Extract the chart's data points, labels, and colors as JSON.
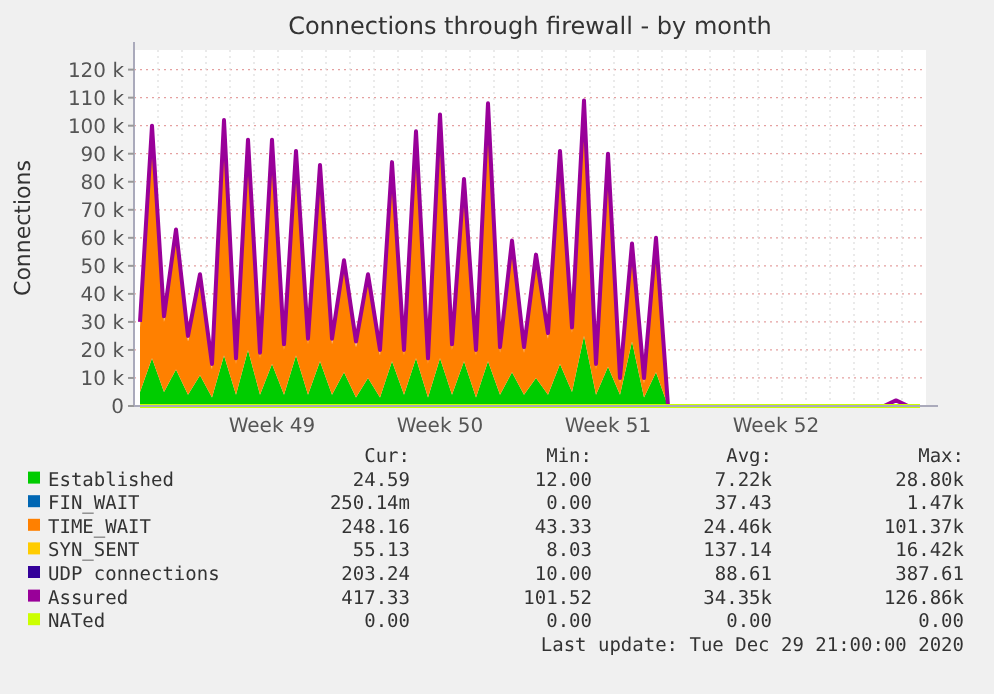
{
  "chart_data": {
    "type": "area",
    "stacked": true,
    "title": "Connections through firewall - by month",
    "ylabel": "Connections",
    "legend": "bottom",
    "grid": true,
    "marker": "none",
    "categories": [
      null,
      null,
      null,
      null,
      null,
      null,
      null,
      null,
      null,
      null,
      null,
      "Week 49",
      null,
      null,
      null,
      null,
      null,
      null,
      null,
      null,
      null,
      null,
      null,
      null,
      null,
      "Week 50",
      null,
      null,
      null,
      null,
      null,
      null,
      null,
      null,
      null,
      null,
      null,
      null,
      null,
      "Week 51",
      null,
      null,
      null,
      null,
      null,
      null,
      null,
      null,
      null,
      null,
      null,
      null,
      null,
      "Week 52",
      null,
      null,
      null,
      null,
      null,
      null,
      null,
      null,
      null,
      null,
      null,
      null
    ],
    "ylim": [
      0,
      127000
    ],
    "yticks": [
      {
        "value": 0,
        "label": "0"
      },
      {
        "value": 10000,
        "label": "10 k"
      },
      {
        "value": 20000,
        "label": "20 k"
      },
      {
        "value": 30000,
        "label": "30 k"
      },
      {
        "value": 40000,
        "label": "40 k"
      },
      {
        "value": 50000,
        "label": "50 k"
      },
      {
        "value": 60000,
        "label": "60 k"
      },
      {
        "value": 70000,
        "label": "70 k"
      },
      {
        "value": 80000,
        "label": "80 k"
      },
      {
        "value": 90000,
        "label": "90 k"
      },
      {
        "value": 100000,
        "label": "100 k"
      },
      {
        "value": 110000,
        "label": "110 k"
      },
      {
        "value": 120000,
        "label": "120 k"
      }
    ],
    "series": [
      {
        "name": "Established",
        "color": "#00cc00",
        "values": [
          5000,
          17000,
          5000,
          13000,
          4000,
          11000,
          3000,
          18000,
          4000,
          20000,
          4000,
          15000,
          4000,
          18000,
          4000,
          16000,
          4000,
          12000,
          3000,
          10000,
          3000,
          16000,
          4000,
          17000,
          3000,
          17000,
          4000,
          16000,
          3000,
          16000,
          4000,
          12000,
          4000,
          10000,
          4000,
          15000,
          5000,
          25000,
          4000,
          14000,
          4000,
          23000,
          3000,
          12000,
          0,
          0,
          0,
          0,
          0,
          0,
          0,
          0,
          0,
          0,
          0,
          0,
          0,
          0,
          0,
          0,
          0,
          0,
          0,
          0,
          0,
          0
        ]
      },
      {
        "name": "FIN_WAIT",
        "color": "#0066b3",
        "values": [
          null,
          null,
          null,
          null,
          null,
          null,
          null,
          null,
          null,
          null,
          null,
          null,
          null,
          null,
          null,
          null,
          null,
          null,
          null,
          null,
          null,
          null,
          null,
          null,
          null,
          null,
          null,
          null,
          null,
          null,
          null,
          null,
          null,
          null,
          null,
          null,
          null,
          null,
          null,
          null,
          null,
          null,
          null,
          null,
          null,
          null,
          null,
          null,
          null,
          null,
          null,
          null,
          null,
          null,
          null,
          null,
          null,
          null,
          null,
          null,
          null,
          null,
          null,
          null,
          null,
          null
        ]
      },
      {
        "name": "TIME_WAIT",
        "color": "#ff8000",
        "values": [
          23000,
          81000,
          25000,
          48000,
          19000,
          34000,
          10000,
          82000,
          11000,
          73000,
          13000,
          78000,
          16000,
          71000,
          18000,
          68000,
          18000,
          38000,
          18000,
          35000,
          15000,
          69000,
          14000,
          79000,
          12000,
          85000,
          16000,
          63000,
          15000,
          90000,
          15000,
          45000,
          15000,
          42000,
          20000,
          74000,
          21000,
          82000,
          9000,
          74000,
          4000,
          33000,
          5000,
          46000,
          0,
          0,
          0,
          0,
          0,
          0,
          0,
          0,
          0,
          0,
          0,
          0,
          0,
          0,
          0,
          0,
          0,
          0,
          0,
          0,
          0,
          0
        ]
      },
      {
        "name": "SYN_SENT",
        "color": "#ffcc00",
        "values": [
          null,
          null,
          null,
          null,
          null,
          null,
          null,
          null,
          null,
          null,
          null,
          null,
          null,
          null,
          null,
          null,
          null,
          null,
          null,
          null,
          null,
          null,
          null,
          null,
          null,
          null,
          null,
          null,
          null,
          null,
          null,
          null,
          null,
          null,
          null,
          null,
          null,
          null,
          null,
          null,
          null,
          null,
          null,
          null,
          null,
          null,
          null,
          null,
          null,
          null,
          null,
          null,
          null,
          null,
          null,
          null,
          null,
          null,
          null,
          null,
          null,
          null,
          null,
          null,
          null,
          null
        ]
      },
      {
        "name": "UDP connections",
        "color": "#330099",
        "values": [
          null,
          null,
          null,
          null,
          null,
          null,
          null,
          null,
          null,
          null,
          null,
          null,
          null,
          null,
          null,
          null,
          null,
          null,
          null,
          null,
          null,
          null,
          null,
          null,
          null,
          null,
          null,
          null,
          null,
          null,
          null,
          null,
          null,
          null,
          null,
          null,
          null,
          null,
          null,
          null,
          null,
          null,
          null,
          null,
          null,
          null,
          null,
          null,
          null,
          null,
          null,
          null,
          null,
          null,
          null,
          null,
          null,
          null,
          null,
          null,
          null,
          null,
          null,
          null,
          null,
          null
        ]
      },
      {
        "name": "Assured",
        "color": "#990099",
        "type": "line",
        "values": [
          30000,
          100000,
          32000,
          63000,
          25000,
          47000,
          15000,
          102000,
          17000,
          95000,
          19000,
          95000,
          22000,
          91000,
          24000,
          86000,
          24000,
          52000,
          23000,
          47000,
          20000,
          87000,
          20000,
          98000,
          17000,
          104000,
          22000,
          81000,
          20000,
          108000,
          21000,
          59000,
          21000,
          54000,
          26000,
          91000,
          28000,
          109000,
          15000,
          90000,
          10000,
          58000,
          10000,
          60000,
          0,
          0,
          0,
          0,
          0,
          0,
          0,
          0,
          0,
          0,
          0,
          0,
          0,
          0,
          0,
          0,
          0,
          0,
          0,
          2000,
          0,
          0
        ]
      },
      {
        "name": "NATed",
        "color": "#ccff00",
        "type": "line",
        "values": [
          0,
          0,
          0,
          0,
          0,
          0,
          0,
          0,
          0,
          0,
          0,
          0,
          0,
          0,
          0,
          0,
          0,
          0,
          0,
          0,
          0,
          0,
          0,
          0,
          0,
          0,
          0,
          0,
          0,
          0,
          0,
          0,
          0,
          0,
          0,
          0,
          0,
          0,
          0,
          0,
          0,
          0,
          0,
          0,
          0,
          0,
          0,
          0,
          0,
          0,
          0,
          0,
          0,
          0,
          0,
          0,
          0,
          0,
          0,
          0,
          0,
          0,
          0,
          0,
          0,
          0
        ]
      }
    ],
    "annotations": [
      "Cur:",
      "Min:",
      "Avg:",
      "Max:",
      "24.59",
      "12.00",
      "7.22k",
      "28.80k",
      "250.14m",
      "0.00",
      "37.43",
      "1.47k",
      "248.16",
      "43.33",
      "24.46k",
      "101.37k",
      "55.13",
      "8.03",
      "137.14",
      "16.42k",
      "203.24",
      "10.00",
      "88.61",
      "387.61",
      "417.33",
      "101.52",
      "34.35k",
      "126.86k",
      "0.00",
      "0.00",
      "0.00",
      "0.00",
      "Last update: Tue Dec 29 21:00:00 2020"
    ]
  }
}
